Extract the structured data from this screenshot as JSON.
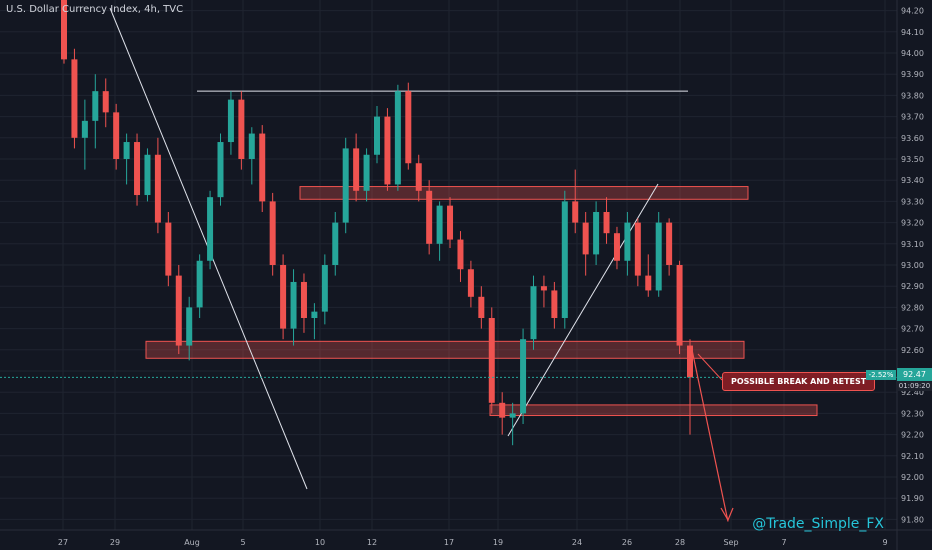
{
  "header": {
    "title": "U.S. Dollar Currency Index, 4h, TVC"
  },
  "watermark": "@Trade_Simple_FX",
  "annotation": {
    "text": "POSSIBLE BREAK AND RETEST"
  },
  "price_tag": {
    "value": "92.47",
    "change": "-2.52%",
    "timer": "01:09:20"
  },
  "colors": {
    "background": "#131722",
    "up": "#26a69a",
    "down": "#ef5350",
    "zone_fill": "#ef5350",
    "trendline": "#e0e3eb",
    "watermark": "#26c6da"
  },
  "chart_data": {
    "type": "candlestick",
    "symbol": "U.S. Dollar Currency Index",
    "interval": "4h",
    "source": "TVC",
    "y_axis": {
      "side": "right",
      "ylim": [
        91.75,
        94.25
      ],
      "ticks": [
        "94.20",
        "94.10",
        "94.00",
        "93.90",
        "93.80",
        "93.70",
        "93.60",
        "93.50",
        "93.40",
        "93.30",
        "93.20",
        "93.10",
        "93.00",
        "92.90",
        "92.80",
        "92.70",
        "92.60",
        "92.50",
        "92.40",
        "92.30",
        "92.20",
        "92.10",
        "92.00",
        "91.90",
        "91.80"
      ]
    },
    "x_axis": {
      "ticks": [
        "27",
        "29",
        "Aug",
        "5",
        "10",
        "12",
        "17",
        "19",
        "24",
        "26",
        "28",
        "Sep",
        "7",
        "9"
      ]
    },
    "grid": true,
    "candles": [
      [
        94.28,
        94.34,
        93.95,
        93.97
      ],
      [
        93.97,
        94.02,
        93.55,
        93.6
      ],
      [
        93.6,
        93.78,
        93.45,
        93.68
      ],
      [
        93.68,
        93.9,
        93.55,
        93.82
      ],
      [
        93.82,
        93.88,
        93.65,
        93.72
      ],
      [
        93.72,
        93.76,
        93.45,
        93.5
      ],
      [
        93.5,
        93.62,
        93.38,
        93.58
      ],
      [
        93.58,
        93.62,
        93.28,
        93.33
      ],
      [
        93.33,
        93.55,
        93.3,
        93.52
      ],
      [
        93.52,
        93.6,
        93.15,
        93.2
      ],
      [
        93.2,
        93.25,
        92.9,
        92.95
      ],
      [
        92.95,
        93.0,
        92.58,
        92.62
      ],
      [
        92.62,
        92.85,
        92.55,
        92.8
      ],
      [
        92.8,
        93.05,
        92.75,
        93.02
      ],
      [
        93.02,
        93.35,
        92.98,
        93.32
      ],
      [
        93.32,
        93.62,
        93.28,
        93.58
      ],
      [
        93.58,
        93.82,
        93.52,
        93.78
      ],
      [
        93.78,
        93.82,
        93.45,
        93.5
      ],
      [
        93.5,
        93.65,
        93.38,
        93.62
      ],
      [
        93.62,
        93.66,
        93.25,
        93.3
      ],
      [
        93.3,
        93.34,
        92.95,
        93.0
      ],
      [
        93.0,
        93.05,
        92.65,
        92.7
      ],
      [
        92.7,
        92.98,
        92.62,
        92.92
      ],
      [
        92.92,
        92.96,
        92.68,
        92.75
      ],
      [
        92.75,
        92.82,
        92.65,
        92.78
      ],
      [
        92.78,
        93.05,
        92.72,
        93.0
      ],
      [
        93.0,
        93.25,
        92.95,
        93.2
      ],
      [
        93.2,
        93.6,
        93.15,
        93.55
      ],
      [
        93.55,
        93.62,
        93.3,
        93.35
      ],
      [
        93.35,
        93.55,
        93.3,
        93.52
      ],
      [
        93.52,
        93.75,
        93.48,
        93.7
      ],
      [
        93.7,
        93.74,
        93.35,
        93.38
      ],
      [
        93.38,
        93.85,
        93.35,
        93.82
      ],
      [
        93.82,
        93.86,
        93.45,
        93.48
      ],
      [
        93.48,
        93.52,
        93.3,
        93.35
      ],
      [
        93.35,
        93.4,
        93.05,
        93.1
      ],
      [
        93.1,
        93.3,
        93.02,
        93.28
      ],
      [
        93.28,
        93.32,
        93.08,
        93.12
      ],
      [
        93.12,
        93.16,
        92.92,
        92.98
      ],
      [
        92.98,
        93.02,
        92.8,
        92.85
      ],
      [
        92.85,
        92.9,
        92.7,
        92.75
      ],
      [
        92.75,
        92.8,
        92.3,
        92.35
      ],
      [
        92.35,
        92.4,
        92.2,
        92.28
      ],
      [
        92.28,
        92.35,
        92.15,
        92.3
      ],
      [
        92.3,
        92.7,
        92.25,
        92.65
      ],
      [
        92.65,
        92.95,
        92.6,
        92.9
      ],
      [
        92.9,
        92.95,
        92.8,
        92.88
      ],
      [
        92.88,
        92.92,
        92.7,
        92.75
      ],
      [
        92.75,
        93.35,
        92.7,
        93.3
      ],
      [
        93.3,
        93.45,
        93.15,
        93.2
      ],
      [
        93.2,
        93.25,
        92.95,
        93.05
      ],
      [
        93.05,
        93.3,
        93.0,
        93.25
      ],
      [
        93.25,
        93.32,
        93.1,
        93.15
      ],
      [
        93.15,
        93.18,
        92.98,
        93.02
      ],
      [
        93.02,
        93.25,
        92.95,
        93.2
      ],
      [
        93.2,
        93.22,
        92.9,
        92.95
      ],
      [
        92.95,
        93.05,
        92.85,
        92.88
      ],
      [
        92.88,
        93.25,
        92.85,
        93.2
      ],
      [
        93.2,
        93.22,
        92.95,
        93.0
      ],
      [
        93.0,
        93.02,
        92.58,
        92.62
      ],
      [
        92.62,
        92.65,
        92.2,
        92.47
      ]
    ],
    "horizontal_levels": [
      {
        "type": "line",
        "price": 93.82,
        "from": "Aug",
        "to": "Aug 28"
      },
      {
        "type": "zone",
        "top": 93.37,
        "bottom": 93.31,
        "label": ""
      },
      {
        "type": "zone",
        "top": 92.64,
        "bottom": 92.56,
        "label": ""
      },
      {
        "type": "zone",
        "top": 92.34,
        "bottom": 92.29,
        "label": ""
      }
    ],
    "trendlines": [
      {
        "from": [
          "Jul 27",
          94.3
        ],
        "to": [
          "Aug 9",
          91.9
        ]
      },
      {
        "from": [
          "Aug 19",
          92.18
        ],
        "to": [
          "Aug 27",
          93.38
        ]
      }
    ],
    "current_price": 92.47,
    "projection": {
      "from": 92.6,
      "to": 91.79
    }
  }
}
